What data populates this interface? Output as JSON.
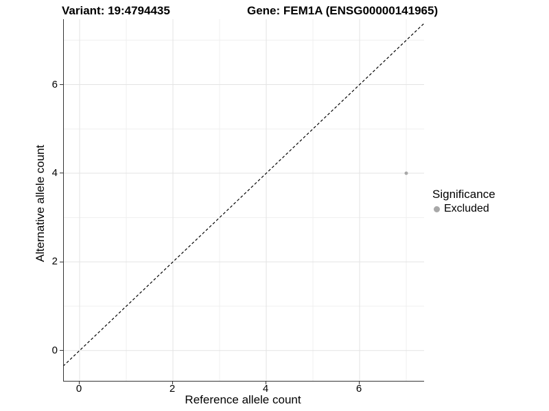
{
  "titles": {
    "variant": "Variant: 19:4794435",
    "gene": "Gene: FEM1A (ENSG00000141965)"
  },
  "axes": {
    "x": {
      "label": "Reference allele count",
      "tick_labels": [
        "0",
        "2",
        "4",
        "6"
      ]
    },
    "y": {
      "label": "Alternative allele count",
      "tick_labels": [
        "0",
        "2",
        "4",
        "6"
      ]
    }
  },
  "legend": {
    "title": "Significance",
    "items": [
      {
        "label": "Excluded",
        "color": "#a8a8a8"
      }
    ]
  },
  "colors": {
    "point": "#a8a8a8",
    "axis_line": "#333333",
    "grid_major": "#e3e3e3",
    "grid_minor": "#efefef",
    "reference_line": "#000000",
    "background": "#ffffff"
  },
  "chart_data": {
    "type": "scatter",
    "title": "Variant: 19:4794435 | Gene: FEM1A (ENSG00000141965)",
    "xlabel": "Reference allele count",
    "ylabel": "Alternative allele count",
    "xlim": [
      -0.35,
      7.4
    ],
    "ylim": [
      -0.7,
      7.5
    ],
    "x_ticks": [
      0,
      2,
      4,
      6
    ],
    "y_ticks": [
      0,
      2,
      4,
      6
    ],
    "x_minor_ticks": [
      1,
      3,
      5,
      7
    ],
    "y_minor_ticks": [
      1,
      3,
      5,
      7
    ],
    "grid": "on",
    "legend_position": "right",
    "series": [
      {
        "name": "Excluded",
        "color": "#a8a8a8",
        "points": [
          {
            "x": 7,
            "y": 4
          }
        ]
      }
    ],
    "reference_line": {
      "type": "identity",
      "equation": "y = x",
      "style": "dashed",
      "color": "#000000"
    }
  }
}
